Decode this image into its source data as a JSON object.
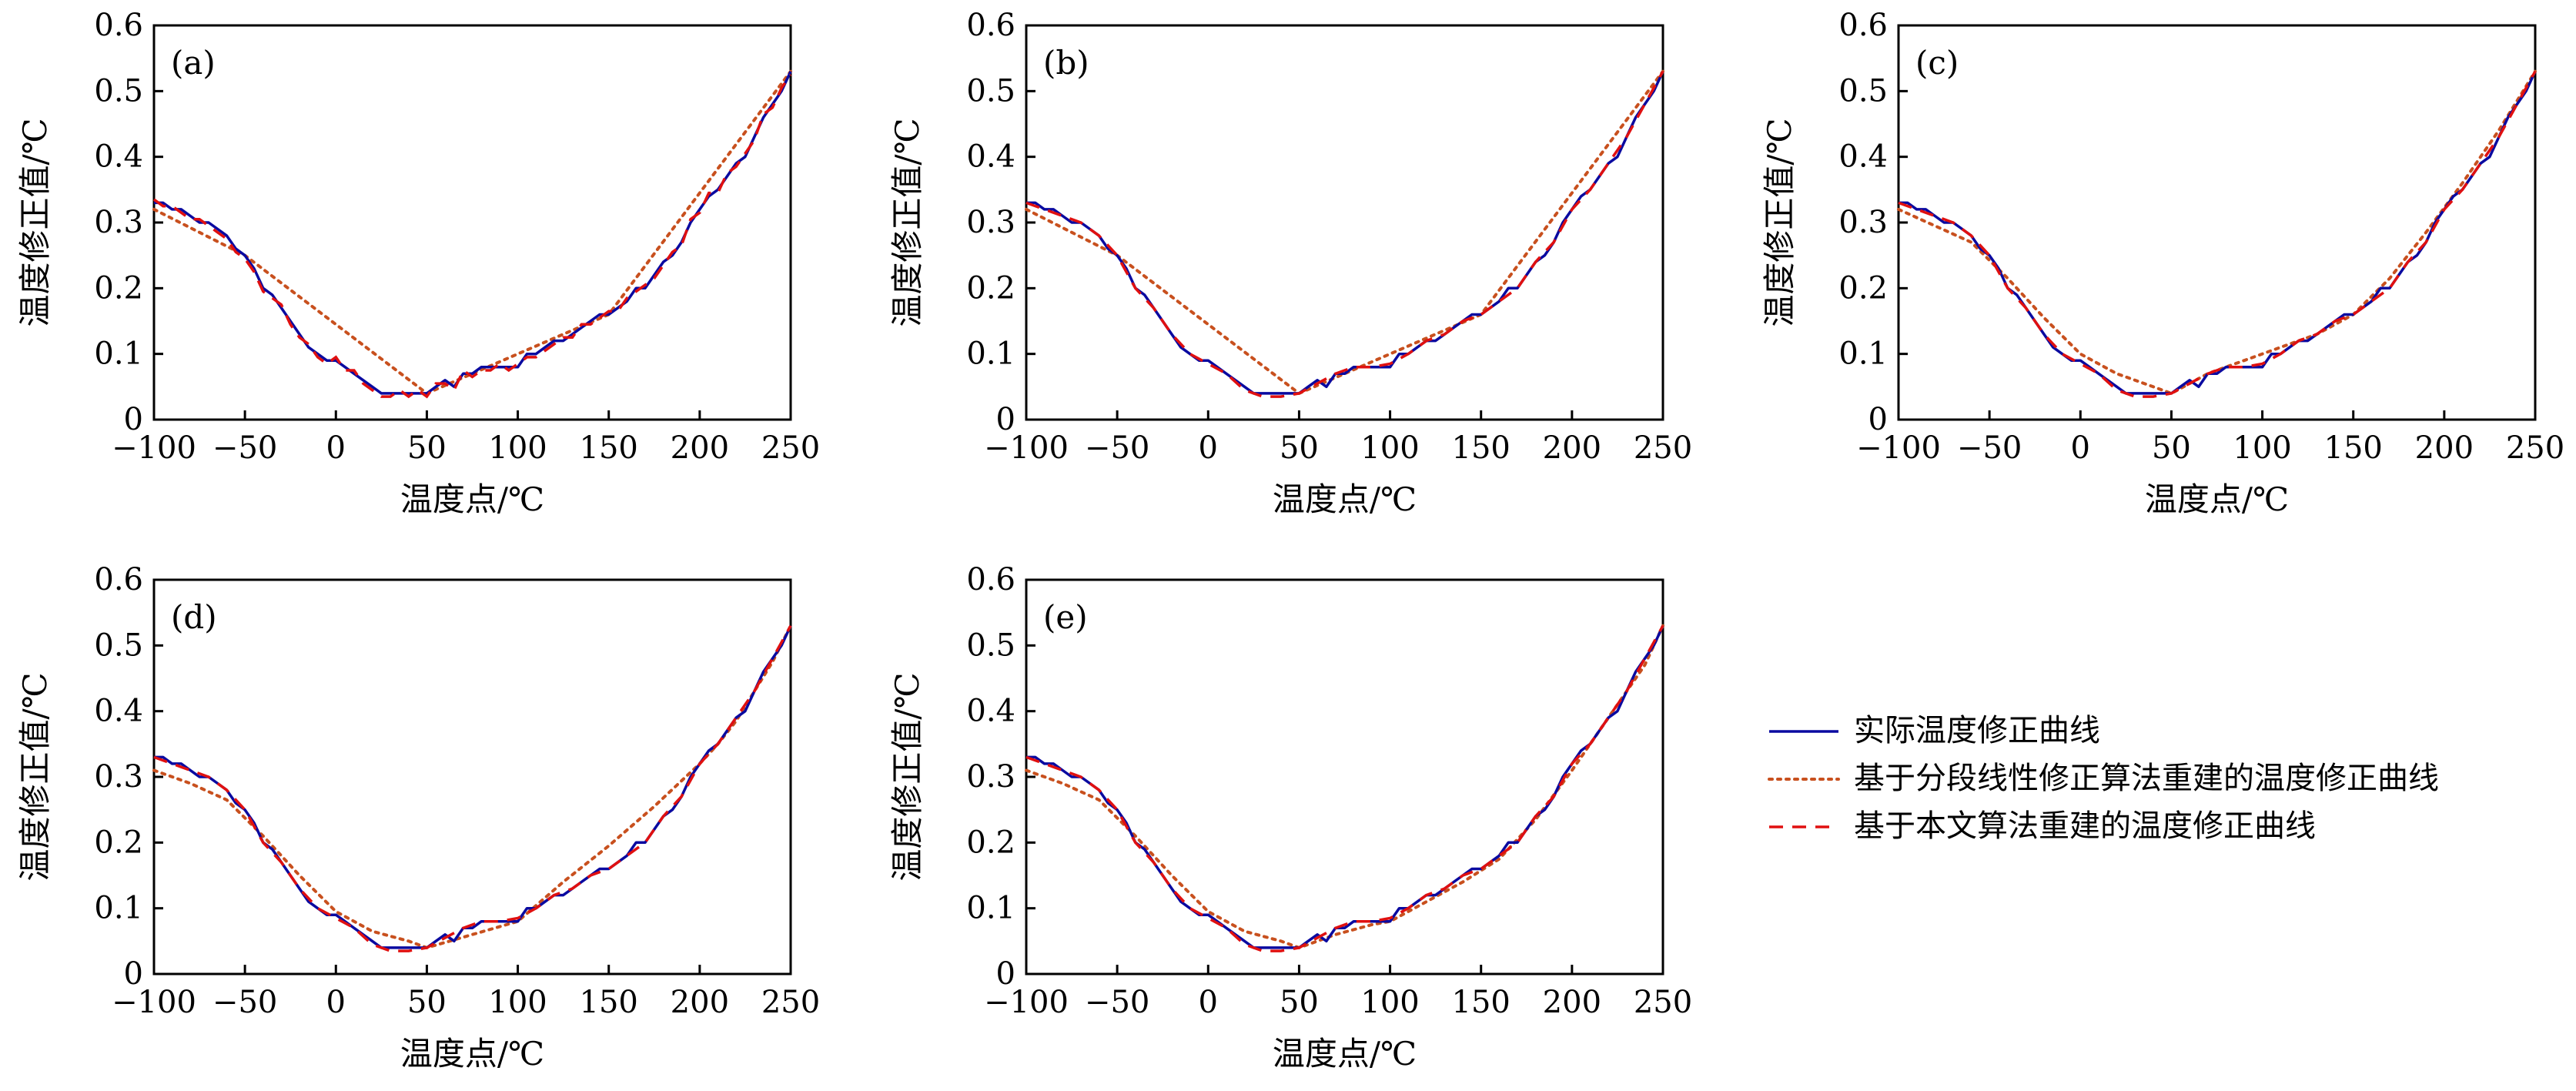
{
  "axis_units": {
    "ylabel": "温度修正值/℃",
    "xlabel": "温度点/℃"
  },
  "legend": {
    "actual": "实际温度修正曲线",
    "piecewise": "基于分段线性修正算法重建的温度修正曲线",
    "ours": "基于本文算法重建的温度修正曲线"
  },
  "colors": {
    "actual": "#0a0aa0",
    "piecewise": "#c8501e",
    "ours": "#e01010"
  },
  "chart_data": {
    "type": "line",
    "xlim": [
      -100,
      250
    ],
    "ylim": [
      0,
      0.6
    ],
    "xticks": [
      -100,
      -50,
      0,
      50,
      100,
      150,
      200,
      250
    ],
    "xtick_labels": [
      "−100",
      "−50",
      "0",
      "50",
      "100",
      "150",
      "200",
      "250"
    ],
    "yticks": [
      0,
      0.1,
      0.2,
      0.3,
      0.4,
      0.5,
      0.6
    ],
    "ytick_labels": [
      "0",
      "0.1",
      "0.2",
      "0.3",
      "0.4",
      "0.5",
      "0.6"
    ],
    "grid": false,
    "legend_placement": "right",
    "actual_curve": {
      "x": [
        -100,
        -95,
        -90,
        -85,
        -80,
        -75,
        -70,
        -65,
        -60,
        -55,
        -50,
        -45,
        -40,
        -35,
        -30,
        -25,
        -20,
        -15,
        -10,
        -5,
        0,
        5,
        10,
        15,
        20,
        25,
        30,
        35,
        40,
        45,
        50,
        55,
        60,
        65,
        70,
        75,
        80,
        85,
        90,
        95,
        100,
        105,
        110,
        115,
        120,
        125,
        130,
        135,
        140,
        145,
        150,
        155,
        160,
        165,
        170,
        175,
        180,
        185,
        190,
        195,
        200,
        205,
        210,
        215,
        220,
        225,
        230,
        235,
        240,
        245,
        250
      ],
      "y": [
        0.33,
        0.33,
        0.32,
        0.32,
        0.31,
        0.3,
        0.3,
        0.29,
        0.28,
        0.26,
        0.25,
        0.23,
        0.2,
        0.19,
        0.17,
        0.15,
        0.13,
        0.11,
        0.1,
        0.09,
        0.09,
        0.08,
        0.07,
        0.06,
        0.05,
        0.04,
        0.04,
        0.04,
        0.04,
        0.04,
        0.04,
        0.05,
        0.06,
        0.05,
        0.07,
        0.07,
        0.08,
        0.08,
        0.08,
        0.08,
        0.08,
        0.1,
        0.1,
        0.11,
        0.12,
        0.12,
        0.13,
        0.14,
        0.15,
        0.16,
        0.16,
        0.17,
        0.18,
        0.2,
        0.2,
        0.22,
        0.24,
        0.25,
        0.27,
        0.3,
        0.32,
        0.34,
        0.35,
        0.37,
        0.39,
        0.4,
        0.43,
        0.46,
        0.48,
        0.5,
        0.53
      ]
    },
    "panels": [
      {
        "label": "(a)",
        "series": [
          {
            "legend_key": "actual",
            "style": "solid"
          },
          {
            "legend_key": "piecewise",
            "style": "dotted",
            "x": [
              -100,
              -50,
              50,
              150,
              250
            ],
            "y": [
              0.32,
              0.25,
              0.04,
              0.16,
              0.53
            ]
          },
          {
            "legend_key": "ours",
            "style": "dashed",
            "x": [
              -100,
              -95,
              -90,
              -85,
              -80,
              -75,
              -70,
              -65,
              -60,
              -55,
              -50,
              -45,
              -40,
              -35,
              -30,
              -25,
              -20,
              -15,
              -10,
              -5,
              0,
              5,
              10,
              15,
              20,
              25,
              30,
              35,
              40,
              45,
              50,
              55,
              60,
              65,
              70,
              75,
              80,
              85,
              90,
              95,
              100,
              105,
              110,
              115,
              120,
              125,
              130,
              135,
              140,
              145,
              150,
              155,
              160,
              165,
              170,
              175,
              180,
              185,
              190,
              195,
              200,
              205,
              210,
              215,
              220,
              225,
              230,
              235,
              240,
              245,
              250
            ],
            "y": [
              0.335,
              0.325,
              0.325,
              0.315,
              0.305,
              0.305,
              0.295,
              0.285,
              0.275,
              0.255,
              0.245,
              0.225,
              0.195,
              0.185,
              0.175,
              0.145,
              0.125,
              0.115,
              0.095,
              0.085,
              0.095,
              0.075,
              0.075,
              0.055,
              0.045,
              0.035,
              0.035,
              0.045,
              0.035,
              0.045,
              0.035,
              0.055,
              0.055,
              0.045,
              0.075,
              0.065,
              0.075,
              0.075,
              0.085,
              0.075,
              0.085,
              0.095,
              0.095,
              0.105,
              0.115,
              0.125,
              0.125,
              0.145,
              0.145,
              0.155,
              0.165,
              0.165,
              0.185,
              0.195,
              0.205,
              0.215,
              0.235,
              0.255,
              0.265,
              0.305,
              0.315,
              0.345,
              0.345,
              0.375,
              0.385,
              0.405,
              0.425,
              0.465,
              0.475,
              0.505,
              0.525
            ]
          }
        ]
      },
      {
        "label": "(b)",
        "series": [
          {
            "legend_key": "actual",
            "style": "solid"
          },
          {
            "legend_key": "piecewise",
            "style": "dotted",
            "x": [
              -100,
              -50,
              50,
              150,
              250
            ],
            "y": [
              0.32,
              0.25,
              0.04,
              0.16,
              0.53
            ]
          },
          {
            "legend_key": "ours",
            "style": "dashed",
            "x": [
              -100,
              -90,
              -80,
              -70,
              -60,
              -50,
              -40,
              -30,
              -20,
              -10,
              0,
              10,
              20,
              30,
              40,
              50,
              60,
              70,
              80,
              90,
              100,
              110,
              120,
              130,
              140,
              150,
              160,
              170,
              180,
              190,
              200,
              210,
              220,
              230,
              240,
              250
            ],
            "y": [
              0.33,
              0.32,
              0.31,
              0.3,
              0.28,
              0.25,
              0.2,
              0.17,
              0.13,
              0.1,
              0.085,
              0.07,
              0.045,
              0.035,
              0.035,
              0.04,
              0.055,
              0.07,
              0.08,
              0.08,
              0.085,
              0.1,
              0.12,
              0.13,
              0.15,
              0.16,
              0.18,
              0.2,
              0.24,
              0.27,
              0.32,
              0.35,
              0.39,
              0.43,
              0.48,
              0.53
            ]
          }
        ]
      },
      {
        "label": "(c)",
        "series": [
          {
            "legend_key": "actual",
            "style": "solid"
          },
          {
            "legend_key": "piecewise",
            "style": "dotted",
            "x": [
              -100,
              -80,
              -60,
              -40,
              -20,
              0,
              20,
              40,
              50,
              70,
              90,
              110,
              130,
              150,
              170,
              190,
              210,
              230,
              250
            ],
            "y": [
              0.32,
              0.295,
              0.27,
              0.215,
              0.155,
              0.1,
              0.07,
              0.05,
              0.04,
              0.07,
              0.09,
              0.11,
              0.13,
              0.16,
              0.215,
              0.285,
              0.36,
              0.44,
              0.53
            ]
          },
          {
            "legend_key": "ours",
            "style": "dashed",
            "x": [
              -100,
              -90,
              -80,
              -70,
              -60,
              -50,
              -40,
              -30,
              -20,
              -10,
              0,
              10,
              20,
              30,
              40,
              50,
              60,
              70,
              80,
              90,
              100,
              110,
              120,
              130,
              140,
              150,
              160,
              170,
              180,
              190,
              200,
              210,
              220,
              230,
              240,
              250
            ],
            "y": [
              0.33,
              0.32,
              0.31,
              0.3,
              0.28,
              0.25,
              0.2,
              0.17,
              0.13,
              0.1,
              0.085,
              0.07,
              0.045,
              0.035,
              0.035,
              0.04,
              0.055,
              0.07,
              0.08,
              0.08,
              0.085,
              0.1,
              0.12,
              0.13,
              0.15,
              0.16,
              0.18,
              0.2,
              0.24,
              0.27,
              0.32,
              0.35,
              0.39,
              0.43,
              0.48,
              0.53
            ]
          }
        ]
      },
      {
        "label": "(d)",
        "series": [
          {
            "legend_key": "actual",
            "style": "solid"
          },
          {
            "legend_key": "piecewise",
            "style": "dotted",
            "x": [
              -100,
              -80,
              -60,
              -40,
              -20,
              0,
              20,
              40,
              50,
              75,
              100,
              125,
              150,
              175,
              200,
              210,
              220,
              230,
              240,
              250
            ],
            "y": [
              0.31,
              0.29,
              0.265,
              0.21,
              0.15,
              0.095,
              0.065,
              0.05,
              0.04,
              0.06,
              0.08,
              0.14,
              0.195,
              0.255,
              0.32,
              0.35,
              0.385,
              0.43,
              0.475,
              0.53
            ]
          },
          {
            "legend_key": "ours",
            "style": "dashed",
            "x": [
              -100,
              -90,
              -80,
              -70,
              -60,
              -50,
              -40,
              -30,
              -20,
              -10,
              0,
              10,
              20,
              30,
              40,
              50,
              60,
              70,
              80,
              90,
              100,
              110,
              120,
              130,
              140,
              150,
              160,
              170,
              180,
              190,
              200,
              210,
              220,
              230,
              240,
              250
            ],
            "y": [
              0.33,
              0.32,
              0.31,
              0.3,
              0.28,
              0.25,
              0.2,
              0.17,
              0.13,
              0.1,
              0.085,
              0.07,
              0.045,
              0.035,
              0.035,
              0.04,
              0.055,
              0.07,
              0.08,
              0.08,
              0.085,
              0.1,
              0.12,
              0.13,
              0.15,
              0.16,
              0.18,
              0.2,
              0.24,
              0.27,
              0.32,
              0.35,
              0.39,
              0.43,
              0.48,
              0.53
            ]
          }
        ]
      },
      {
        "label": "(e)",
        "series": [
          {
            "legend_key": "actual",
            "style": "solid"
          },
          {
            "legend_key": "piecewise",
            "style": "dotted",
            "x": [
              -100,
              -80,
              -60,
              -40,
              -20,
              0,
              20,
              40,
              50,
              70,
              90,
              100,
              120,
              140,
              160,
              180,
              200,
              220,
              240,
              250
            ],
            "y": [
              0.31,
              0.29,
              0.265,
              0.21,
              0.15,
              0.095,
              0.065,
              0.05,
              0.04,
              0.06,
              0.075,
              0.08,
              0.11,
              0.14,
              0.175,
              0.235,
              0.31,
              0.39,
              0.47,
              0.53
            ]
          },
          {
            "legend_key": "ours",
            "style": "dashed",
            "x": [
              -100,
              -90,
              -80,
              -70,
              -60,
              -50,
              -40,
              -30,
              -20,
              -10,
              0,
              10,
              20,
              30,
              40,
              50,
              60,
              70,
              80,
              90,
              100,
              110,
              120,
              130,
              140,
              150,
              160,
              170,
              180,
              190,
              200,
              210,
              220,
              230,
              240,
              250
            ],
            "y": [
              0.33,
              0.32,
              0.31,
              0.3,
              0.28,
              0.25,
              0.2,
              0.17,
              0.13,
              0.1,
              0.085,
              0.07,
              0.045,
              0.035,
              0.035,
              0.04,
              0.055,
              0.07,
              0.08,
              0.08,
              0.085,
              0.1,
              0.12,
              0.13,
              0.15,
              0.16,
              0.18,
              0.2,
              0.24,
              0.27,
              0.32,
              0.35,
              0.39,
              0.43,
              0.48,
              0.53
            ]
          }
        ]
      }
    ]
  }
}
